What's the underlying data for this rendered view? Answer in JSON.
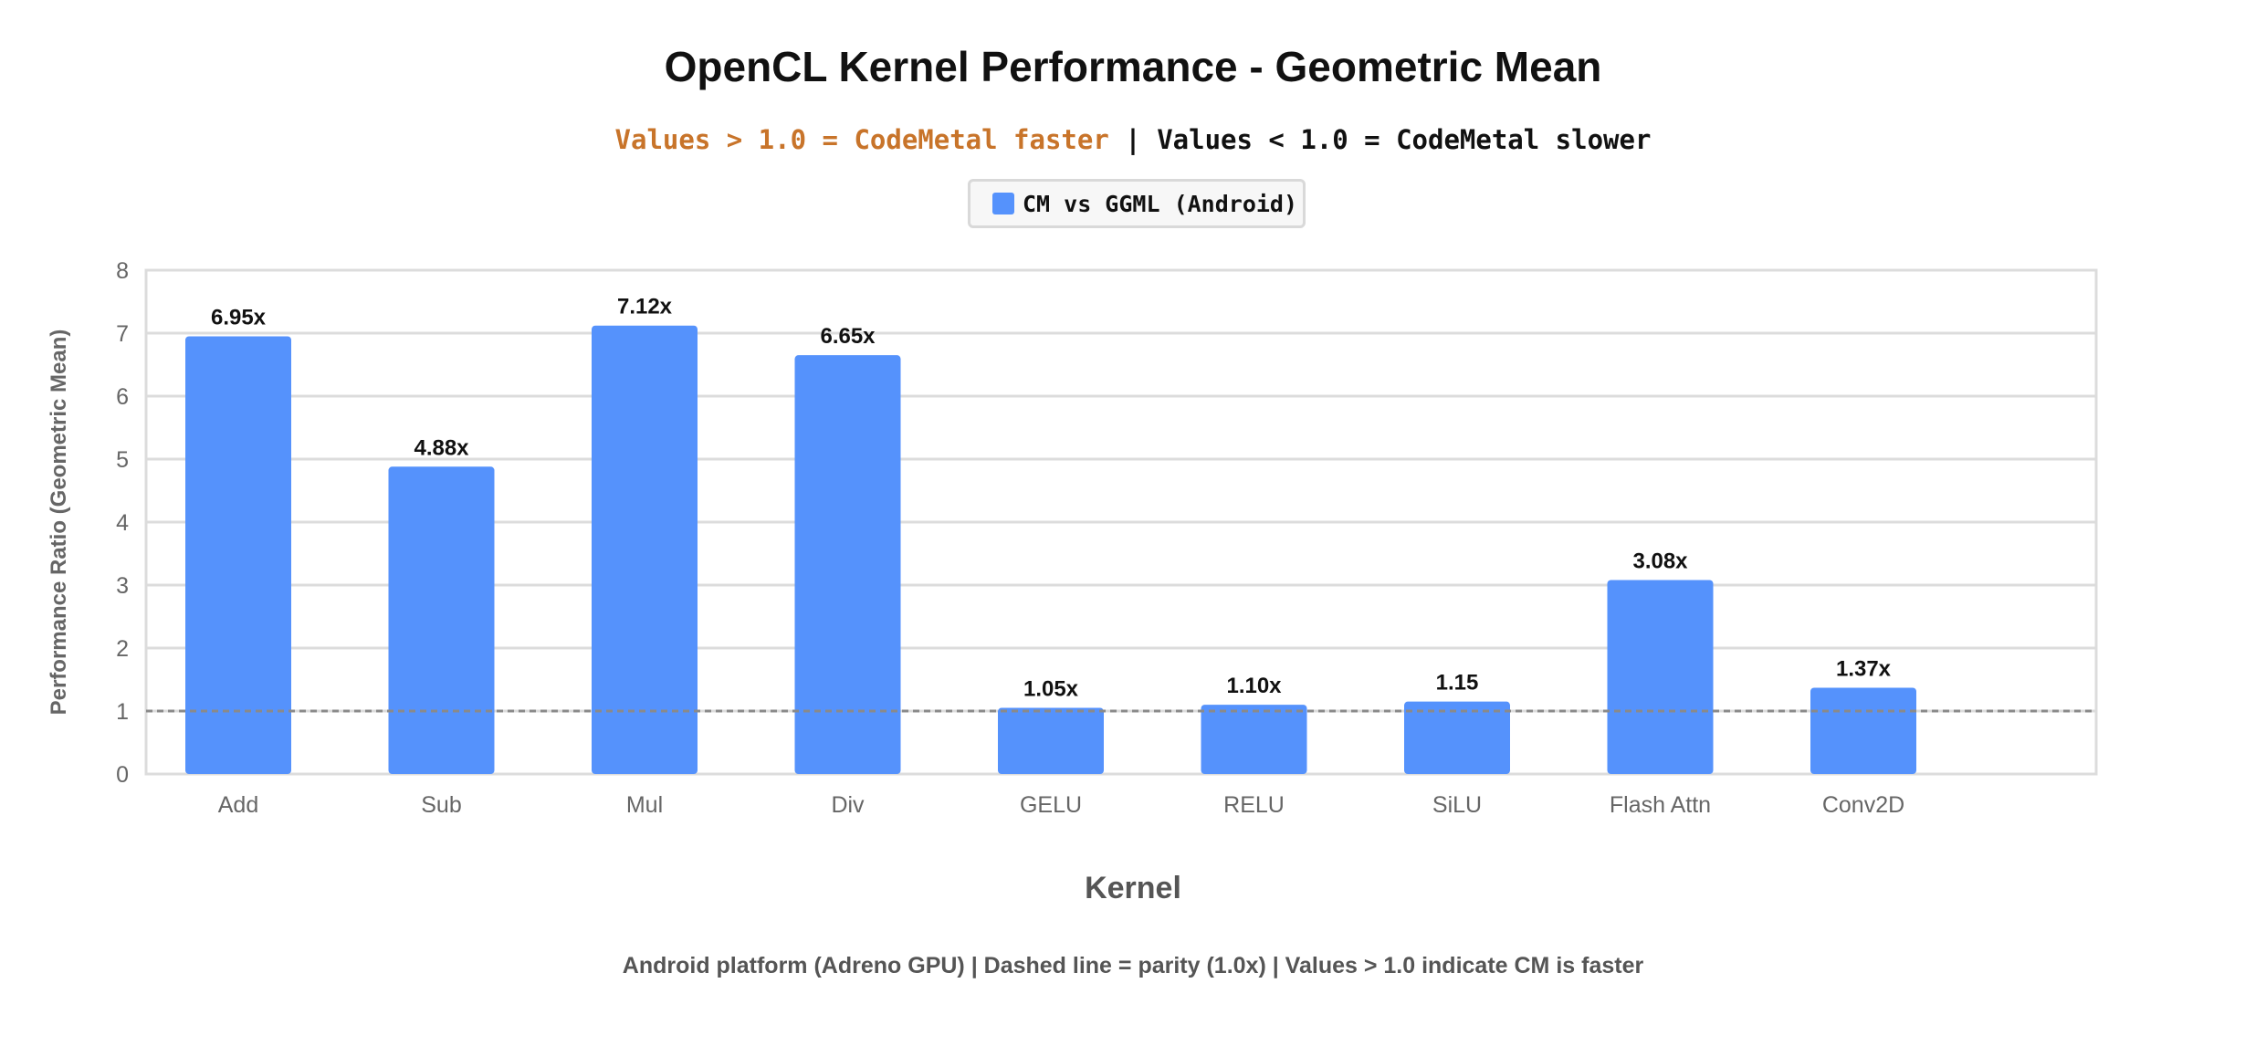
{
  "title": "OpenCL Kernel Performance - Geometric Mean",
  "subtitle": {
    "left": "Values > 1.0 = CodeMetal faster",
    "separator": " | ",
    "right": "Values < 1.0 = CodeMetal slower"
  },
  "footnote": "Android platform (Adreno GPU) | Dashed line = parity (1.0x) | Values > 1.0 indicate CM is faster",
  "colors": {
    "bar": "#5592fc",
    "accent": "#c8742a",
    "grid": "#dcdcdc",
    "parity_line": "#8a8a8a"
  },
  "chart_data": {
    "type": "bar",
    "title": "OpenCL Kernel Performance - Geometric Mean",
    "xlabel": "Kernel",
    "ylabel": "Performance Ratio (Geometric Mean)",
    "categories": [
      "Add",
      "Sub",
      "Mul",
      "Div",
      "GELU",
      "RELU",
      "SiLU",
      "Flash Attn",
      "Conv2D"
    ],
    "series": [
      {
        "name": "CM vs GGML (Android)",
        "values": [
          6.95,
          4.88,
          7.12,
          6.65,
          1.05,
          1.1,
          1.15,
          3.08,
          1.37
        ],
        "labels": [
          "6.95x",
          "4.88x",
          "7.12x",
          "6.65x",
          "1.05x",
          "1.10x",
          "1.15",
          "3.08x",
          "1.37x"
        ]
      }
    ],
    "ylim": [
      0,
      8
    ],
    "yticks": [
      0,
      1,
      2,
      3,
      4,
      5,
      6,
      7,
      8
    ],
    "parity_line": 1.0,
    "grid": true,
    "legend_position": "top-center"
  }
}
